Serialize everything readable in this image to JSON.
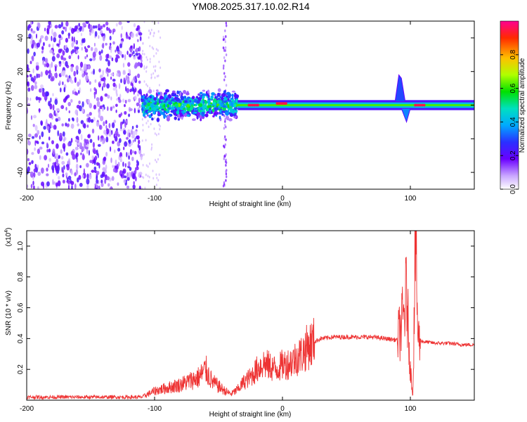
{
  "chart_data": [
    {
      "type": "heatmap",
      "title": "YM08.2025.317.10.02.R14",
      "xlabel": "Height of straight line (km)",
      "ylabel": "Frequency (Hz)",
      "xlim": [
        -200,
        150
      ],
      "ylim": [
        -50,
        50
      ],
      "xticks": [
        -200,
        -100,
        0,
        100
      ],
      "yticks": [
        -40,
        -20,
        0,
        20,
        40
      ],
      "colorbar": {
        "label": "Normalized spectral amplitude",
        "range": [
          0,
          1
        ],
        "ticks": [
          0.0,
          0.2,
          0.4,
          0.6,
          0.8
        ],
        "tick_labels": [
          "0.0",
          "0.2",
          "0.4",
          "0.6",
          "0.8"
        ],
        "colors": [
          "#ffffff",
          "#9c27ff",
          "#3f00ff",
          "#00aaff",
          "#00e0c8",
          "#00e000",
          "#c8ff00",
          "#ffc000",
          "#ff3000",
          "#ff00a0"
        ]
      },
      "regions": [
        {
          "x_start": -200,
          "x_end": -110,
          "pattern": "broadband noise",
          "intensity": 0.15
        },
        {
          "x_start": -110,
          "x_end": -35,
          "pattern": "band near 0 Hz, scattered",
          "freq_half_width": 8,
          "intensity": 0.45
        },
        {
          "x_start": -35,
          "x_end": 150,
          "pattern": "narrow line at 0 Hz",
          "freq_half_width": 3,
          "intensity": 0.6
        }
      ],
      "features": [
        {
          "x": -45,
          "description": "vertical streak across frequencies"
        },
        {
          "x": 92,
          "freq": 18,
          "description": "upward spike"
        },
        {
          "x": 97,
          "freq": -10,
          "description": "downward dip"
        },
        {
          "x": -22,
          "freq": 0,
          "intensity": 0.95
        },
        {
          "x": 0,
          "freq": 1,
          "intensity": 0.95
        },
        {
          "x": 108,
          "freq": 0,
          "intensity": 0.95
        }
      ]
    },
    {
      "type": "line",
      "xlabel": "Height of straight line (km)",
      "ylabel": "SNR (10 * v/v)",
      "y_multiplier": "(x10^4)",
      "y_multiplier_base": "(x10",
      "y_multiplier_exp": "4",
      "xlim": [
        -200,
        150
      ],
      "ylim": [
        0,
        1.1
      ],
      "xticks": [
        -200,
        -100,
        0,
        100
      ],
      "yticks": [
        0.2,
        0.4,
        0.6,
        0.8,
        1.0
      ],
      "color": "#ee3333",
      "series": [
        {
          "name": "SNR",
          "x": [
            -200,
            -150,
            -110,
            -100,
            -80,
            -65,
            -60,
            -55,
            -45,
            -40,
            -35,
            -30,
            -25,
            -20,
            -15,
            -10,
            -5,
            0,
            5,
            10,
            15,
            20,
            25,
            30,
            40,
            50,
            60,
            70,
            80,
            90,
            95,
            97,
            100,
            102,
            104,
            106,
            110,
            120,
            130,
            140,
            150
          ],
          "y": [
            0.02,
            0.02,
            0.02,
            0.06,
            0.1,
            0.15,
            0.2,
            0.12,
            0.06,
            0.04,
            0.07,
            0.12,
            0.15,
            0.2,
            0.24,
            0.22,
            0.2,
            0.23,
            0.24,
            0.27,
            0.3,
            0.35,
            0.38,
            0.4,
            0.41,
            0.41,
            0.41,
            0.41,
            0.4,
            0.39,
            0.55,
            0.7,
            0.2,
            0.03,
            1.1,
            0.4,
            0.38,
            0.37,
            0.37,
            0.36,
            0.36
          ]
        }
      ]
    }
  ]
}
